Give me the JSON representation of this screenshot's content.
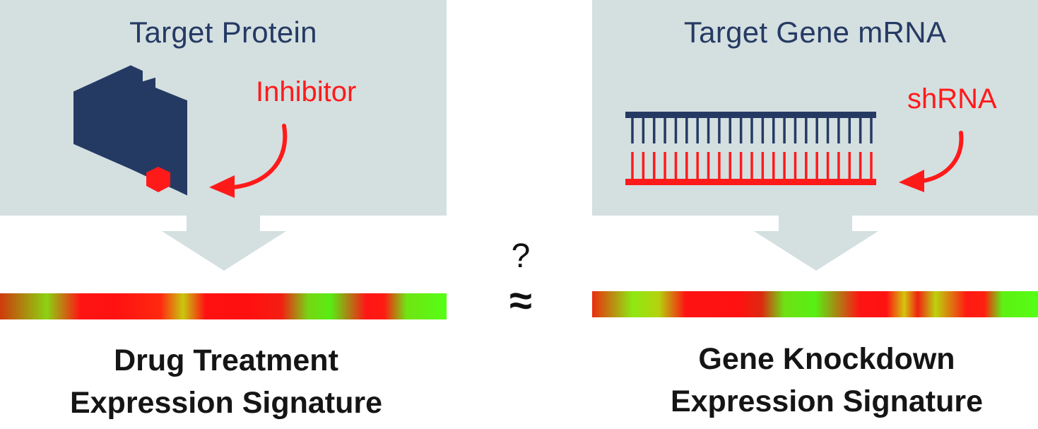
{
  "left": {
    "title": "Target Protein",
    "agent": "Inhibitor",
    "signature_line1": "Drug Treatment",
    "signature_line2": "Expression Signature"
  },
  "right": {
    "title": "Target Gene mRNA",
    "agent": "shRNA",
    "signature_line1": "Gene Knockdown",
    "signature_line2": "Expression Signature"
  },
  "comparison": {
    "question": "?",
    "approx": "≈"
  },
  "colors": {
    "panel_bg": "#d4dfe0",
    "protein": "#253a63",
    "accent_red": "#ff1a1a",
    "signature_green": "#55ff15",
    "signature_red": "#ff1111"
  },
  "icons": {
    "protein": "hexagon-protein-icon",
    "inhibitor": "small-hexagon-inhibitor-icon",
    "mrna": "double-strand-ladder-icon",
    "arrow": "curved-arrow-icon",
    "flow": "down-arrow-icon"
  }
}
